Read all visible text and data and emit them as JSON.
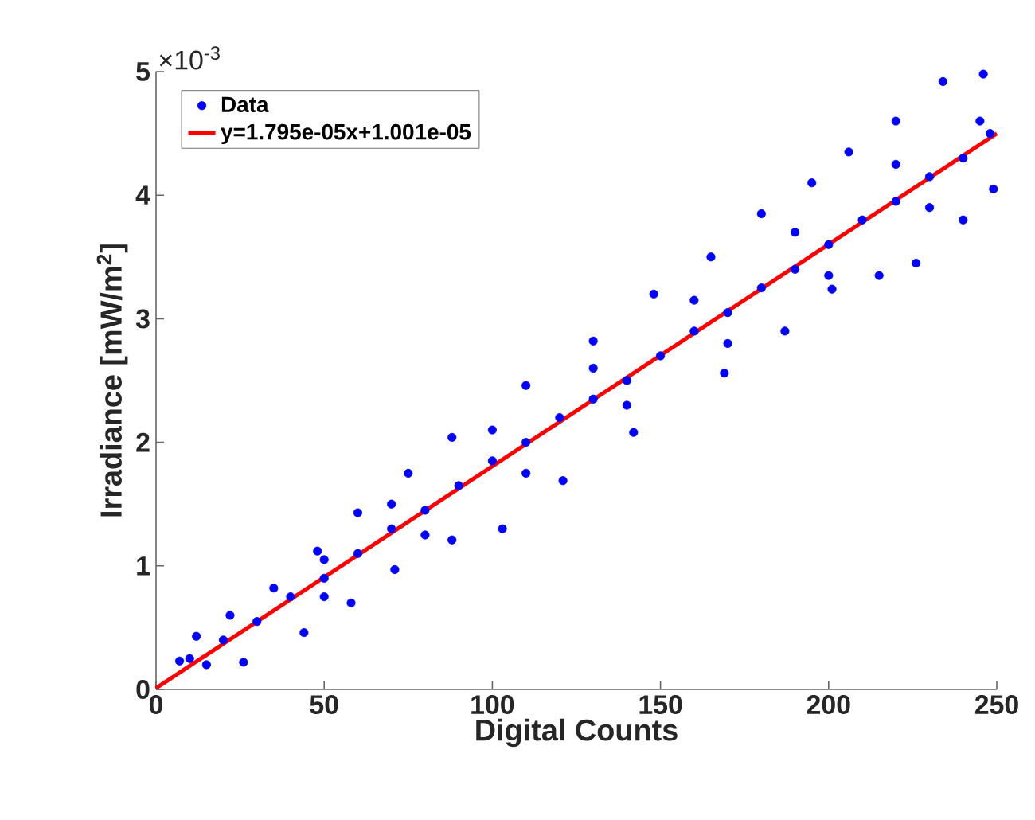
{
  "chart_data": {
    "type": "scatter",
    "xlabel": "Digital Counts",
    "ylabel": "Irradiance [mW/m$^{2}$]",
    "xlim": [
      0,
      250
    ],
    "ylim": [
      0,
      5
    ],
    "xticks": [
      0,
      50,
      100,
      150,
      200,
      250
    ],
    "yticks": [
      0,
      1,
      2,
      3,
      4,
      5
    ],
    "annotations": [
      "×10$^{-3}$"
    ],
    "legend": "top left",
    "series": [
      {
        "name": "Data",
        "type": "scatter",
        "marker": "circle",
        "color": "#0000ff",
        "x": [
          7,
          12,
          22,
          35,
          48,
          60,
          75,
          88,
          110,
          130,
          148,
          165,
          180,
          195,
          206,
          220,
          234,
          246,
          15,
          26,
          44,
          58,
          71,
          88,
          103,
          121,
          142,
          169,
          187,
          201,
          215,
          226,
          240,
          249,
          10,
          20,
          30,
          40,
          50,
          60,
          70,
          80,
          90,
          100,
          110,
          120,
          130,
          140,
          150,
          160,
          170,
          180,
          190,
          200,
          210,
          220,
          230,
          240,
          248,
          50,
          70,
          100,
          130,
          160,
          190,
          220,
          245,
          50,
          80,
          110,
          140,
          170,
          200,
          230
        ],
        "values": [
          0.23,
          0.43,
          0.6,
          0.82,
          1.12,
          1.43,
          1.75,
          2.04,
          2.46,
          2.82,
          3.2,
          3.5,
          3.85,
          4.1,
          4.35,
          4.6,
          4.92,
          4.98,
          0.2,
          0.22,
          0.46,
          0.7,
          0.97,
          1.21,
          1.3,
          1.69,
          2.08,
          2.56,
          2.9,
          3.24,
          3.35,
          3.45,
          3.8,
          4.05,
          0.25,
          0.4,
          0.55,
          0.75,
          0.9,
          1.1,
          1.3,
          1.45,
          1.65,
          1.85,
          2.0,
          2.2,
          2.35,
          2.5,
          2.7,
          2.9,
          3.05,
          3.25,
          3.4,
          3.6,
          3.8,
          3.95,
          4.15,
          4.3,
          4.5,
          1.05,
          1.5,
          2.1,
          2.6,
          3.15,
          3.7,
          4.25,
          4.6,
          0.75,
          1.25,
          1.75,
          2.3,
          2.8,
          3.35,
          3.9
        ]
      },
      {
        "name": "y=1.795e-05x+1.001e-05",
        "type": "line",
        "color": "#ff0000",
        "x": [
          0,
          250
        ],
        "values": [
          0.01,
          4.5
        ]
      }
    ]
  }
}
